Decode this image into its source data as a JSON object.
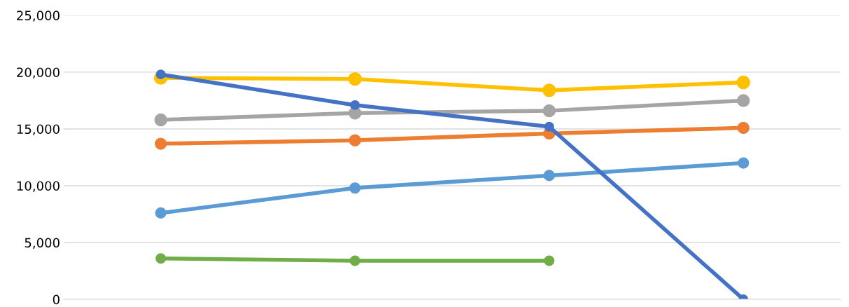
{
  "chart_data": {
    "type": "line",
    "categories": [
      null,
      null,
      null,
      null
    ],
    "series": [
      {
        "color": "#ffc000",
        "values": [
          19500,
          19400,
          18400,
          19100
        ]
      },
      {
        "color": "#a5a5a5",
        "values": [
          15800,
          16400,
          16600,
          17500
        ]
      },
      {
        "color": "#ed7d31",
        "values": [
          13700,
          14000,
          14600,
          15100
        ]
      },
      {
        "color": "#5b9bd5",
        "values": [
          7600,
          9800,
          10900,
          12000
        ]
      },
      {
        "color": "#70ad47",
        "values": [
          3600,
          3400,
          3400,
          null
        ]
      },
      {
        "color": "#4472c4",
        "values": [
          19800,
          17100,
          15200,
          0
        ]
      }
    ],
    "ylim": [
      0,
      25000
    ],
    "yticks": [
      {
        "value": 0,
        "label": "0"
      },
      {
        "value": 5000,
        "label": "5,000"
      },
      {
        "value": 10000,
        "label": "10,000"
      },
      {
        "value": 15000,
        "label": "15,000"
      },
      {
        "value": 20000,
        "label": "20,000"
      },
      {
        "value": 25000,
        "label": "25,000"
      }
    ],
    "grid": "y",
    "marker": "circle",
    "line_style": "solid",
    "legend": false
  }
}
